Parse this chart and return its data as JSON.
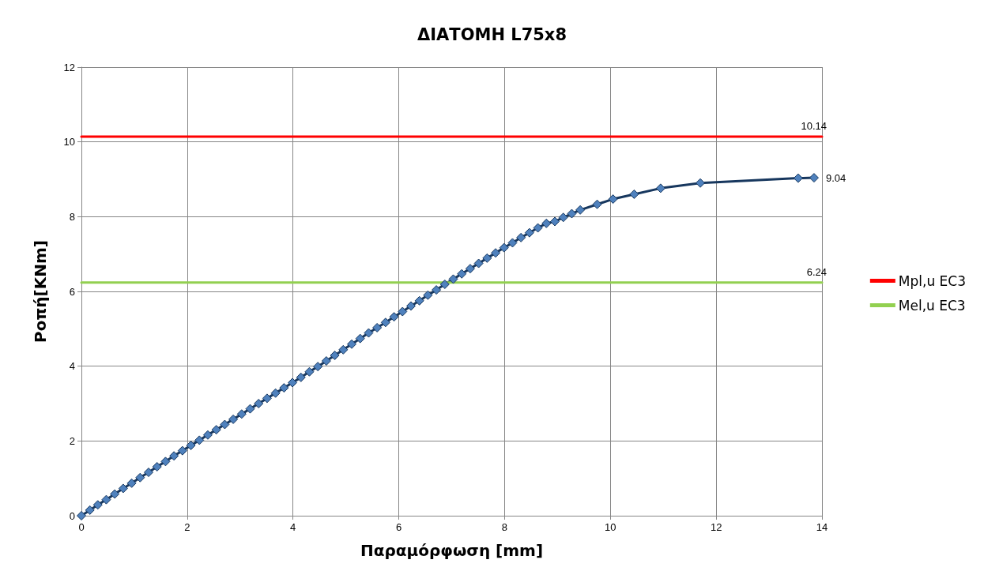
{
  "chart_data": {
    "type": "line",
    "title": "ΔΙΑΤΟΜΗ L75x8",
    "xlabel": "Παραμόρφωση [mm]",
    "ylabel": "Ροπή[KNm]",
    "xlim": [
      0,
      14
    ],
    "xticks": [
      0,
      2,
      4,
      6,
      8,
      10,
      12,
      14
    ],
    "ylim": [
      0,
      12
    ],
    "yticks": [
      0,
      2,
      4,
      6,
      8,
      10,
      12
    ],
    "grid": true,
    "legend": "right",
    "marker": "diamond",
    "line_style": "solid",
    "series": [
      {
        "color": "#17375e",
        "x": [
          0,
          0.16,
          0.31,
          0.47,
          0.63,
          0.79,
          0.95,
          1.11,
          1.27,
          1.43,
          1.59,
          1.75,
          1.91,
          2.07,
          2.23,
          2.39,
          2.55,
          2.71,
          2.87,
          3.03,
          3.19,
          3.35,
          3.51,
          3.67,
          3.83,
          3.99,
          4.15,
          4.31,
          4.47,
          4.63,
          4.79,
          4.95,
          5.11,
          5.27,
          5.43,
          5.59,
          5.75,
          5.91,
          6.07,
          6.23,
          6.39,
          6.55,
          6.71,
          6.87,
          7.03,
          7.19,
          7.35,
          7.51,
          7.67,
          7.83,
          7.99,
          8.15,
          8.31,
          8.47,
          8.63,
          8.79,
          8.95,
          9.11,
          9.27,
          9.43,
          9.75,
          10.05,
          10.45,
          10.95,
          11.7,
          13.55,
          13.85
        ],
        "values": [
          0,
          0.15,
          0.29,
          0.43,
          0.58,
          0.73,
          0.87,
          1.02,
          1.16,
          1.31,
          1.45,
          1.6,
          1.74,
          1.88,
          2.02,
          2.16,
          2.3,
          2.44,
          2.58,
          2.72,
          2.86,
          3,
          3.14,
          3.28,
          3.42,
          3.56,
          3.7,
          3.85,
          3.99,
          4.14,
          4.29,
          4.44,
          4.59,
          4.74,
          4.89,
          5.03,
          5.17,
          5.32,
          5.46,
          5.61,
          5.75,
          5.9,
          6.04,
          6.19,
          6.33,
          6.47,
          6.61,
          6.75,
          6.89,
          7.03,
          7.17,
          7.3,
          7.44,
          7.57,
          7.7,
          7.82,
          7.87,
          7.98,
          8.08,
          8.18,
          8.33,
          8.47,
          8.6,
          8.76,
          8.9,
          9.03,
          9.04
        ],
        "value_labels": [
          null,
          null,
          null,
          null,
          null,
          null,
          null,
          null,
          null,
          null,
          null,
          null,
          null,
          null,
          null,
          null,
          null,
          null,
          null,
          null,
          null,
          null,
          null,
          null,
          null,
          null,
          null,
          null,
          null,
          null,
          null,
          null,
          null,
          null,
          null,
          null,
          null,
          null,
          null,
          null,
          null,
          null,
          null,
          null,
          null,
          null,
          null,
          null,
          null,
          null,
          null,
          null,
          null,
          null,
          null,
          null,
          null,
          null,
          null,
          null,
          null,
          null,
          null,
          null,
          null,
          null,
          "9.04"
        ]
      },
      {
        "name": "Mpl,u EC3",
        "color": "#ff0000",
        "marker": "none",
        "x": [
          0,
          14
        ],
        "values": [
          10.14,
          10.14
        ],
        "value_labels": [
          null,
          "10.14"
        ]
      },
      {
        "name": "Mel,u EC3",
        "color": "#92d050",
        "marker": "none",
        "x": [
          0,
          14
        ],
        "values": [
          6.24,
          6.24
        ],
        "value_labels": [
          null,
          "6.24"
        ]
      }
    ]
  }
}
